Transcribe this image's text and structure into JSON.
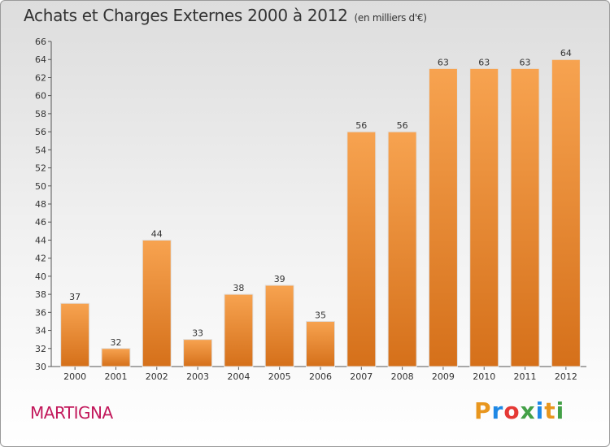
{
  "header": {
    "title": "Achats et Charges Externes 2000 à 2012",
    "unit": "(en milliers d'€)"
  },
  "footer": {
    "town": "MARTIGNA",
    "brand_letters": [
      "P",
      "r",
      "o",
      "x",
      "i",
      "t",
      "i"
    ],
    "brand_colors": [
      "#e8961e",
      "#1e88e5",
      "#e53935",
      "#43a047",
      "#1e88e5",
      "#e8961e",
      "#43a047"
    ]
  },
  "chart_data": {
    "type": "bar",
    "title": "Achats et Charges Externes 2000 à 2012",
    "subtitle": "(en milliers d'€)",
    "categories": [
      "2000",
      "2001",
      "2002",
      "2003",
      "2004",
      "2005",
      "2006",
      "2007",
      "2008",
      "2009",
      "2010",
      "2011",
      "2012"
    ],
    "values": [
      37,
      32,
      44,
      33,
      38,
      39,
      35,
      56,
      56,
      63,
      63,
      63,
      64
    ],
    "ylim": [
      30,
      66
    ],
    "ytick_step": 2,
    "grid": false,
    "bar_color": "#f0922e",
    "bar_color_dark": "#d97a1c"
  }
}
